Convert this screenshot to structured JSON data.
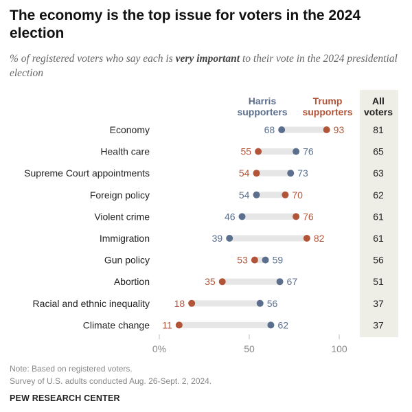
{
  "header": {
    "title": "The economy is the top issue for voters in the 2024 election",
    "subtitle_pre": "% of registered voters who say each is ",
    "subtitle_emph": "very important",
    "subtitle_post": " to their vote in the 2024 presidential election"
  },
  "footer": {
    "note": "Note: Based on registered voters.",
    "source": "Survey of U.S. adults conducted Aug. 26-Sept. 2, 2024.",
    "brand": "PEW RESEARCH CENTER"
  },
  "colors": {
    "harris": "#5b6f8c",
    "trump": "#b25438",
    "connector": "#e6e6e6",
    "all_voters_bg": "#efeee6"
  },
  "chart_data": {
    "type": "dot",
    "categories": [
      "Economy",
      "Health care",
      "Supreme Court appointments",
      "Foreign policy",
      "Violent crime",
      "Immigration",
      "Gun policy",
      "Abortion",
      "Racial and ethnic inequality",
      "Climate change"
    ],
    "series": [
      {
        "name": "Harris supporters",
        "values": [
          68,
          76,
          73,
          54,
          46,
          39,
          59,
          67,
          56,
          62
        ]
      },
      {
        "name": "Trump supporters",
        "values": [
          93,
          55,
          54,
          70,
          76,
          82,
          53,
          35,
          18,
          11
        ]
      }
    ],
    "all_voters": {
      "name": "All voters",
      "values": [
        81,
        65,
        63,
        62,
        61,
        61,
        56,
        51,
        37,
        37
      ]
    },
    "xlim": [
      0,
      100
    ],
    "xticks": [
      "0%",
      "50",
      "100"
    ]
  }
}
